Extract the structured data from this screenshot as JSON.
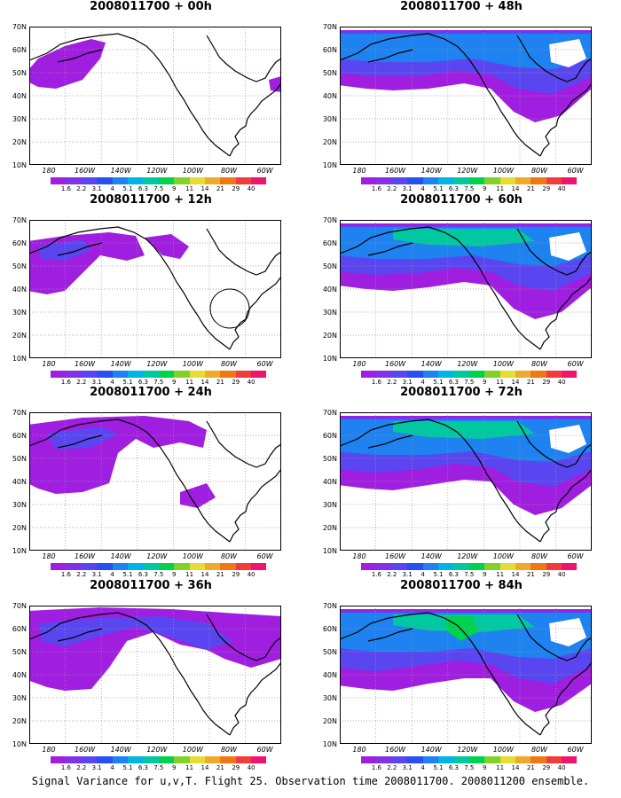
{
  "panels": [
    {
      "title": "2008011700 + 00h",
      "level": 0
    },
    {
      "title": "2008011700 + 12h",
      "level": 1
    },
    {
      "title": "2008011700 + 24h",
      "level": 2
    },
    {
      "title": "2008011700 + 36h",
      "level": 3
    },
    {
      "title": "2008011700 + 48h",
      "level": 4
    },
    {
      "title": "2008011700 + 60h",
      "level": 5
    },
    {
      "title": "2008011700 + 72h",
      "level": 6
    },
    {
      "title": "2008011700 + 84h",
      "level": 7
    }
  ],
  "axes": {
    "lat_labels": [
      "70N",
      "60N",
      "50N",
      "40N",
      "30N",
      "20N",
      "10N"
    ],
    "lon_labels": [
      "180",
      "160W",
      "140W",
      "120W",
      "100W",
      "80W",
      "60W"
    ]
  },
  "colorbar": {
    "labels": [
      "1.6",
      "2.2",
      "3.1",
      "4",
      "5.1",
      "6.3",
      "7.5",
      "9",
      "11",
      "14",
      "21",
      "29",
      "40"
    ],
    "colors": [
      "#a01ee0",
      "#8232e6",
      "#5a46f0",
      "#2850f0",
      "#1e82f0",
      "#00b4e6",
      "#00c8a0",
      "#00d250",
      "#80d22a",
      "#e6dc32",
      "#f0aa2a",
      "#f07814",
      "#f03c3c",
      "#f0146e"
    ]
  },
  "caption": "Signal Variance for u,v,T. Flight 25. Observation time 2008011700. 2008011200 ensemble.",
  "variance_colors": {
    "low": "#a01ee0",
    "mid": "#5a46f0",
    "high": "#1e82f0",
    "higher": "#00c8a0",
    "peak": "#00d250"
  }
}
